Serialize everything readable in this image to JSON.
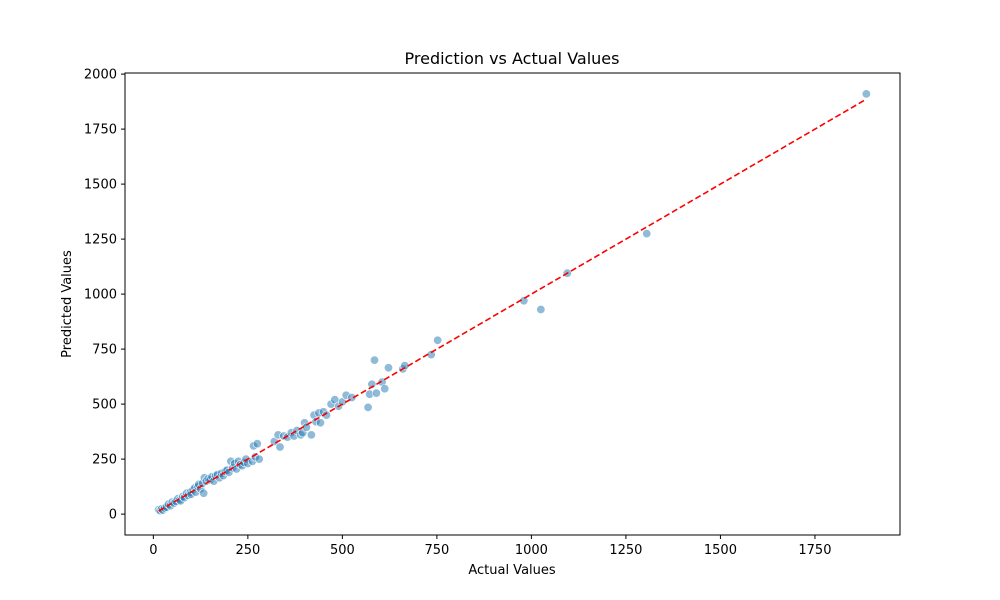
{
  "chart_data": {
    "type": "scatter",
    "title": "Prediction vs Actual Values",
    "xlabel": "Actual Values",
    "ylabel": "Predicted Values",
    "xlim": [
      -75,
      1975
    ],
    "ylim": [
      -95,
      2005
    ],
    "xticks": [
      0,
      250,
      500,
      750,
      1000,
      1250,
      1500,
      1750
    ],
    "yticks": [
      0,
      250,
      500,
      750,
      1000,
      1250,
      1500,
      1750,
      2000
    ],
    "grid": false,
    "point_color": "#1f77b4",
    "line_color": "#ff0000",
    "reference_line": {
      "style": "dashed",
      "from": [
        14,
        14
      ],
      "to": [
        1886,
        1886
      ]
    },
    "points": [
      [
        14,
        20
      ],
      [
        18,
        16
      ],
      [
        22,
        24
      ],
      [
        25,
        18
      ],
      [
        30,
        28
      ],
      [
        35,
        32
      ],
      [
        40,
        45
      ],
      [
        45,
        38
      ],
      [
        50,
        55
      ],
      [
        55,
        50
      ],
      [
        60,
        58
      ],
      [
        65,
        70
      ],
      [
        70,
        65
      ],
      [
        72,
        60
      ],
      [
        78,
        80
      ],
      [
        82,
        75
      ],
      [
        88,
        95
      ],
      [
        92,
        85
      ],
      [
        98,
        100
      ],
      [
        100,
        90
      ],
      [
        105,
        110
      ],
      [
        110,
        120
      ],
      [
        112,
        100
      ],
      [
        118,
        125
      ],
      [
        120,
        135
      ],
      [
        125,
        115
      ],
      [
        130,
        140
      ],
      [
        133,
        95
      ],
      [
        135,
        165
      ],
      [
        140,
        150
      ],
      [
        145,
        160
      ],
      [
        150,
        155
      ],
      [
        155,
        170
      ],
      [
        160,
        150
      ],
      [
        165,
        175
      ],
      [
        170,
        180
      ],
      [
        175,
        165
      ],
      [
        180,
        185
      ],
      [
        185,
        175
      ],
      [
        190,
        195
      ],
      [
        195,
        200
      ],
      [
        200,
        190
      ],
      [
        205,
        240
      ],
      [
        210,
        210
      ],
      [
        215,
        230
      ],
      [
        220,
        205
      ],
      [
        225,
        240
      ],
      [
        230,
        225
      ],
      [
        235,
        220
      ],
      [
        240,
        235
      ],
      [
        245,
        250
      ],
      [
        250,
        230
      ],
      [
        262,
        240
      ],
      [
        265,
        310
      ],
      [
        270,
        260
      ],
      [
        275,
        320
      ],
      [
        280,
        250
      ],
      [
        320,
        330
      ],
      [
        330,
        360
      ],
      [
        335,
        305
      ],
      [
        345,
        355
      ],
      [
        355,
        350
      ],
      [
        365,
        370
      ],
      [
        372,
        355
      ],
      [
        380,
        380
      ],
      [
        390,
        360
      ],
      [
        395,
        370
      ],
      [
        400,
        415
      ],
      [
        405,
        395
      ],
      [
        418,
        360
      ],
      [
        425,
        450
      ],
      [
        430,
        420
      ],
      [
        438,
        460
      ],
      [
        442,
        415
      ],
      [
        450,
        465
      ],
      [
        458,
        450
      ],
      [
        470,
        500
      ],
      [
        480,
        520
      ],
      [
        490,
        490
      ],
      [
        500,
        510
      ],
      [
        510,
        540
      ],
      [
        525,
        530
      ],
      [
        568,
        485
      ],
      [
        572,
        545
      ],
      [
        578,
        590
      ],
      [
        585,
        700
      ],
      [
        590,
        550
      ],
      [
        605,
        600
      ],
      [
        612,
        570
      ],
      [
        622,
        665
      ],
      [
        660,
        660
      ],
      [
        665,
        675
      ],
      [
        735,
        725
      ],
      [
        752,
        790
      ],
      [
        980,
        970
      ],
      [
        1025,
        930
      ],
      [
        1095,
        1095
      ],
      [
        1305,
        1275
      ],
      [
        1886,
        1910
      ]
    ]
  }
}
